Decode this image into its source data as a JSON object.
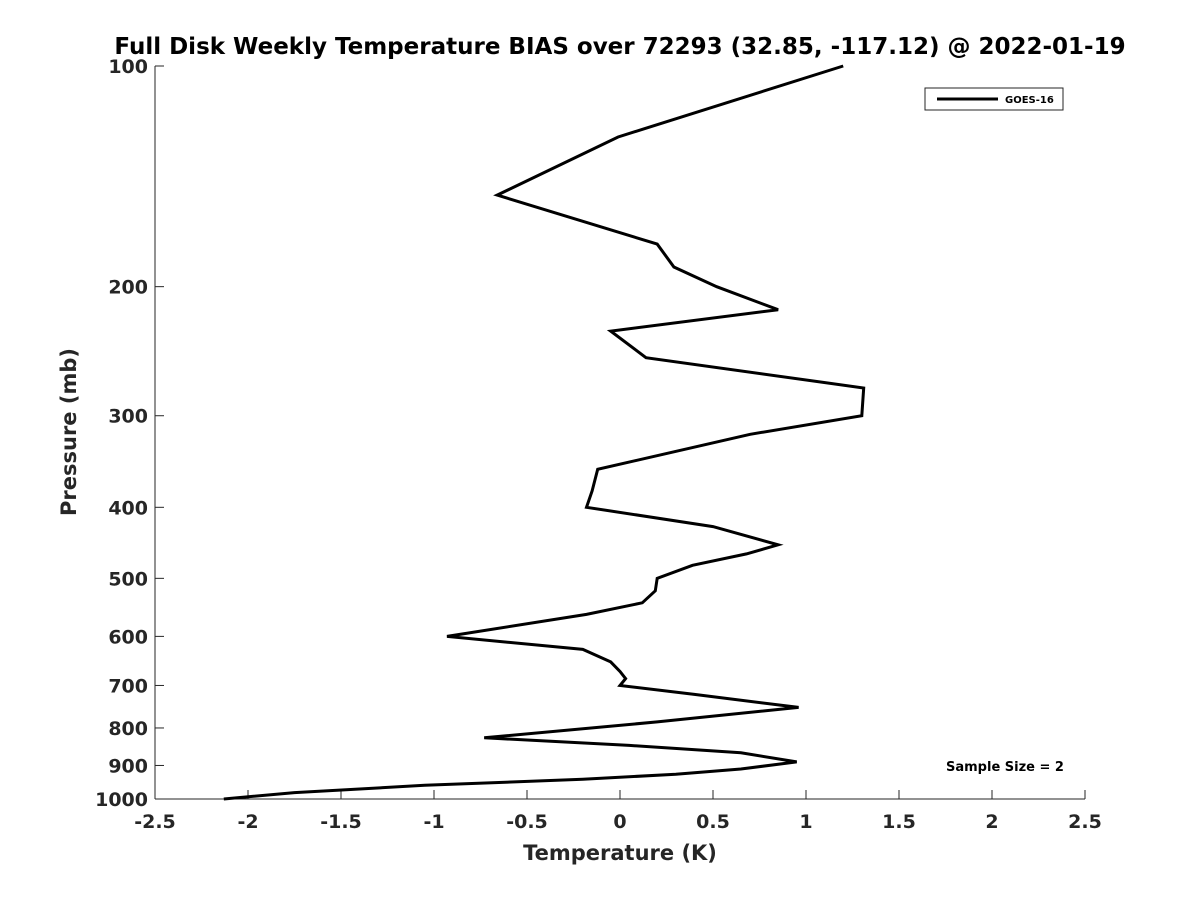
{
  "chart_data": {
    "type": "line",
    "title": "Full Disk Weekly Temperature BIAS over 72293 (32.85, -117.12) @ 2022-01-19",
    "xlabel": "Temperature (K)",
    "ylabel": "Pressure (mb)",
    "xlim": [
      -2.5,
      2.5
    ],
    "ylim": [
      1000,
      100
    ],
    "y_scale": "log",
    "y_direction": "reversed",
    "xticks": [
      "-2.5",
      "-2",
      "-1.5",
      "-1",
      "-0.5",
      "0",
      "0.5",
      "1",
      "1.5",
      "2",
      "2.5"
    ],
    "xtick_values": [
      -2.5,
      -2,
      -1.5,
      -1,
      -0.5,
      0,
      0.5,
      1,
      1.5,
      2,
      2.5
    ],
    "yticks": [
      "100",
      "200",
      "300",
      "400",
      "500",
      "600",
      "700",
      "800",
      "900",
      "1000"
    ],
    "ytick_values": [
      100,
      200,
      300,
      400,
      500,
      600,
      700,
      800,
      900,
      1000
    ],
    "grid": false,
    "legend_position": "top-right",
    "series": [
      {
        "name": "GOES-16",
        "color": "#000000",
        "points": [
          {
            "x": 1.2,
            "p": 100
          },
          {
            "x": -0.01,
            "p": 125
          },
          {
            "x": -0.66,
            "p": 150
          },
          {
            "x": 0.2,
            "p": 175
          },
          {
            "x": 0.29,
            "p": 188
          },
          {
            "x": 0.52,
            "p": 200
          },
          {
            "x": 0.85,
            "p": 215
          },
          {
            "x": -0.05,
            "p": 230
          },
          {
            "x": 0.14,
            "p": 250
          },
          {
            "x": 1.31,
            "p": 275
          },
          {
            "x": 1.3,
            "p": 300
          },
          {
            "x": 0.7,
            "p": 318
          },
          {
            "x": -0.12,
            "p": 355
          },
          {
            "x": -0.15,
            "p": 380
          },
          {
            "x": -0.18,
            "p": 400
          },
          {
            "x": 0.5,
            "p": 425
          },
          {
            "x": 0.85,
            "p": 450
          },
          {
            "x": 0.68,
            "p": 463
          },
          {
            "x": 0.39,
            "p": 480
          },
          {
            "x": 0.2,
            "p": 500
          },
          {
            "x": 0.19,
            "p": 520
          },
          {
            "x": 0.12,
            "p": 540
          },
          {
            "x": -0.18,
            "p": 560
          },
          {
            "x": -0.93,
            "p": 600
          },
          {
            "x": -0.2,
            "p": 625
          },
          {
            "x": -0.05,
            "p": 650
          },
          {
            "x": 0.0,
            "p": 670
          },
          {
            "x": 0.03,
            "p": 685
          },
          {
            "x": 0.0,
            "p": 700
          },
          {
            "x": 0.4,
            "p": 720
          },
          {
            "x": 0.96,
            "p": 750
          },
          {
            "x": 0.2,
            "p": 785
          },
          {
            "x": -0.73,
            "p": 825
          },
          {
            "x": 0.05,
            "p": 845
          },
          {
            "x": 0.65,
            "p": 865
          },
          {
            "x": 0.95,
            "p": 890
          },
          {
            "x": 0.65,
            "p": 910
          },
          {
            "x": 0.3,
            "p": 925
          },
          {
            "x": -0.2,
            "p": 940
          },
          {
            "x": -1.05,
            "p": 958
          },
          {
            "x": -1.75,
            "p": 980
          },
          {
            "x": -2.13,
            "p": 1000
          }
        ]
      }
    ],
    "annotation": "Sample Size = 2"
  }
}
